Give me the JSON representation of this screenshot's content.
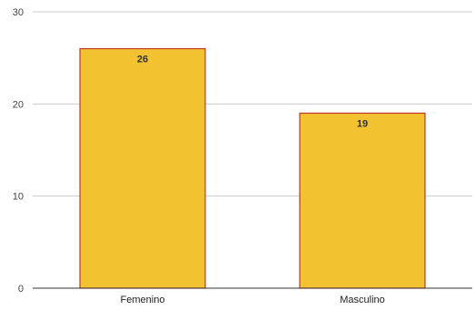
{
  "chart_data": {
    "type": "bar",
    "categories": [
      "Femenino",
      "Masculino"
    ],
    "values": [
      26,
      19
    ],
    "title": "",
    "xlabel": "",
    "ylabel": "",
    "ylim": [
      0,
      30
    ],
    "yticks": [
      0,
      10,
      20,
      30
    ],
    "data_labels": [
      "26",
      "19"
    ],
    "grid": true,
    "legend": "none",
    "colors": {
      "bar_fill": "#f2c231",
      "bar_stroke": "#c0392b",
      "grid": "#cccccc",
      "axis": "#333333"
    }
  }
}
